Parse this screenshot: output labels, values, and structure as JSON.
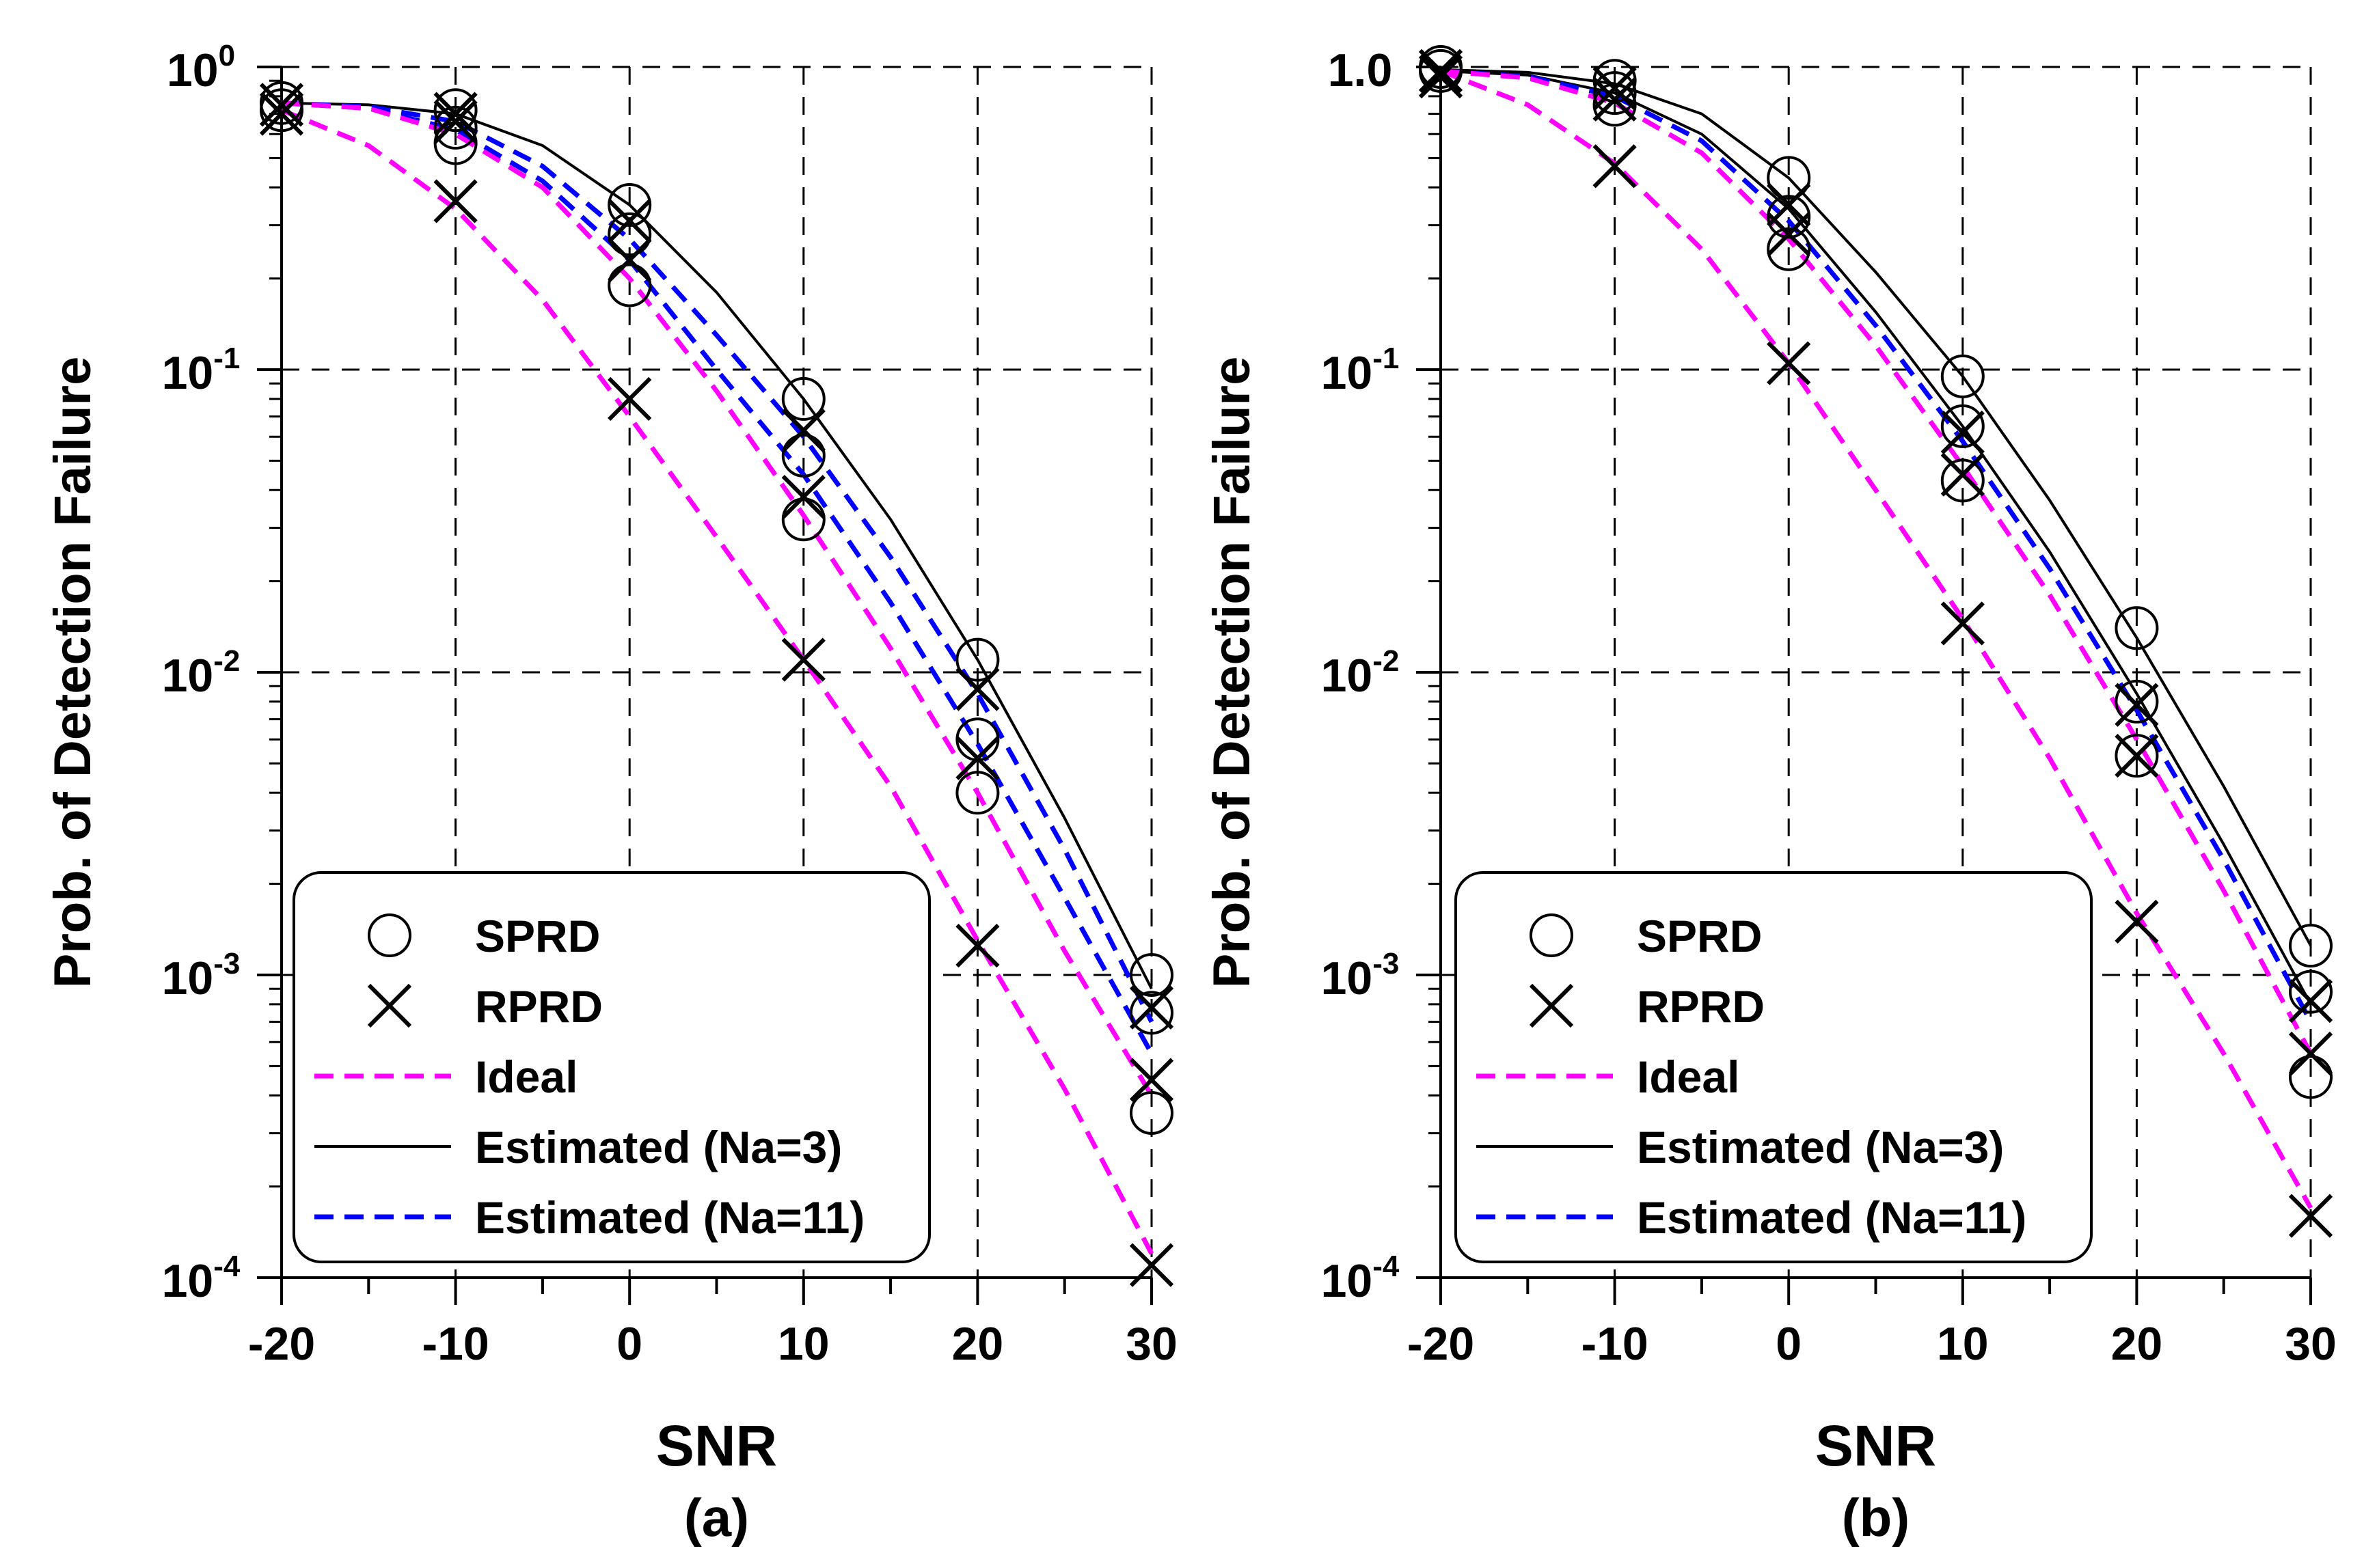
{
  "chart_data": [
    {
      "type": "line",
      "panel_label": "(a)",
      "xlabel": "SNR",
      "ylabel": "Prob. of Detection Failure",
      "x_ticks": [
        -20,
        -10,
        0,
        10,
        20,
        30
      ],
      "x_tick_labels": [
        "-20",
        "-10",
        "0",
        "10",
        "20",
        "30"
      ],
      "xlim": [
        -20,
        30
      ],
      "yscale": "log",
      "ylim": [
        0.0001,
        1
      ],
      "y_ticks": [
        {
          "base": "10",
          "exp": "0"
        },
        {
          "base": "10",
          "exp": "-1"
        },
        {
          "base": "10",
          "exp": "-2"
        },
        {
          "base": "10",
          "exp": "-3"
        },
        {
          "base": "10",
          "exp": "-4"
        }
      ],
      "grid": true,
      "legend_placement": "lower-left",
      "legend": [
        {
          "label": "SPRD",
          "marker": "circle"
        },
        {
          "label": "RPRD",
          "marker": "x"
        },
        {
          "label": "Ideal",
          "line": "dashed",
          "color": "#ff00ff"
        },
        {
          "label": "Estimated (Na=3)",
          "line": "solid",
          "color": "#000000"
        },
        {
          "label": "Estimated (Na=11)",
          "line": "dashed",
          "color": "#0000ff"
        }
      ],
      "lines": [
        {
          "name": "Ideal",
          "style": "dashed",
          "color": "#ff00ff",
          "x": [
            -20,
            -15,
            -10,
            -5,
            0,
            5,
            10,
            15,
            20,
            25,
            30
          ],
          "y": [
            0.72,
            0.55,
            0.34,
            0.17,
            0.07,
            0.028,
            0.011,
            0.0042,
            0.0013,
            0.00042,
            0.00012
          ]
        },
        {
          "name": "Estimated (Na=3)",
          "style": "solid",
          "color": "#000000",
          "x": [
            -20,
            -15,
            -10,
            -5,
            0,
            5,
            10,
            15,
            20,
            25,
            30
          ],
          "y": [
            0.76,
            0.75,
            0.7,
            0.55,
            0.35,
            0.18,
            0.08,
            0.032,
            0.011,
            0.0033,
            0.0009
          ]
        },
        {
          "name": "Estimated (Na=11)",
          "style": "dashed",
          "color": "#0000ff",
          "x": [
            -20,
            -15,
            -10,
            -5,
            0,
            5,
            10,
            15,
            20,
            25,
            30
          ],
          "y": [
            0.76,
            0.74,
            0.66,
            0.47,
            0.27,
            0.13,
            0.06,
            0.024,
            0.0085,
            0.0026,
            0.0007
          ]
        },
        {
          "name": "Estimated (Na=11)",
          "style": "dashed",
          "color": "#0000ff",
          "x": [
            -20,
            -15,
            -10,
            -5,
            0,
            5,
            10,
            15,
            20,
            25,
            30
          ],
          "y": [
            0.76,
            0.73,
            0.62,
            0.42,
            0.23,
            0.1,
            0.045,
            0.017,
            0.0058,
            0.0018,
            0.00055
          ]
        },
        {
          "name": "Ideal",
          "style": "dashed",
          "color": "#ff00ff",
          "x": [
            -20,
            -15,
            -10,
            -5,
            0,
            5,
            10,
            15,
            20,
            25,
            30
          ],
          "y": [
            0.76,
            0.73,
            0.6,
            0.4,
            0.2,
            0.085,
            0.033,
            0.012,
            0.004,
            0.0012,
            0.0004
          ]
        }
      ],
      "markers": [
        {
          "series": "SPRD",
          "marker": "circle",
          "x": -20,
          "y": 0.76
        },
        {
          "series": "SPRD",
          "marker": "circle",
          "x": -20,
          "y": 0.72
        },
        {
          "series": "SPRD",
          "marker": "circle",
          "x": -10,
          "y": 0.72
        },
        {
          "series": "SPRD",
          "marker": "circle",
          "x": -10,
          "y": 0.63
        },
        {
          "series": "SPRD",
          "marker": "circle",
          "x": -10,
          "y": 0.56
        },
        {
          "series": "SPRD",
          "marker": "circle",
          "x": 0,
          "y": 0.35
        },
        {
          "series": "SPRD",
          "marker": "circle",
          "x": 0,
          "y": 0.28
        },
        {
          "series": "SPRD",
          "marker": "circle",
          "x": 0,
          "y": 0.19
        },
        {
          "series": "SPRD",
          "marker": "circle",
          "x": 10,
          "y": 0.08
        },
        {
          "series": "SPRD",
          "marker": "circle",
          "x": 10,
          "y": 0.052
        },
        {
          "series": "SPRD",
          "marker": "circle",
          "x": 10,
          "y": 0.032
        },
        {
          "series": "SPRD",
          "marker": "circle",
          "x": 20,
          "y": 0.011
        },
        {
          "series": "SPRD",
          "marker": "circle",
          "x": 20,
          "y": 0.006
        },
        {
          "series": "SPRD",
          "marker": "circle",
          "x": 20,
          "y": 0.004
        },
        {
          "series": "SPRD",
          "marker": "circle",
          "x": 30,
          "y": 0.001
        },
        {
          "series": "SPRD",
          "marker": "circle",
          "x": 30,
          "y": 0.00075
        },
        {
          "series": "SPRD",
          "marker": "circle",
          "x": 30,
          "y": 0.00035
        },
        {
          "series": "RPRD",
          "marker": "x",
          "x": -20,
          "y": 0.75
        },
        {
          "series": "RPRD",
          "marker": "x",
          "x": -20,
          "y": 0.7
        },
        {
          "series": "RPRD",
          "marker": "x",
          "x": -10,
          "y": 0.7
        },
        {
          "series": "RPRD",
          "marker": "x",
          "x": -10,
          "y": 0.66
        },
        {
          "series": "RPRD",
          "marker": "x",
          "x": -10,
          "y": 0.36
        },
        {
          "series": "RPRD",
          "marker": "x",
          "x": 0,
          "y": 0.31
        },
        {
          "series": "RPRD",
          "marker": "x",
          "x": 0,
          "y": 0.23
        },
        {
          "series": "RPRD",
          "marker": "x",
          "x": 0,
          "y": 0.08
        },
        {
          "series": "RPRD",
          "marker": "x",
          "x": 10,
          "y": 0.063
        },
        {
          "series": "RPRD",
          "marker": "x",
          "x": 10,
          "y": 0.038
        },
        {
          "series": "RPRD",
          "marker": "x",
          "x": 10,
          "y": 0.011
        },
        {
          "series": "RPRD",
          "marker": "x",
          "x": 20,
          "y": 0.0088
        },
        {
          "series": "RPRD",
          "marker": "x",
          "x": 20,
          "y": 0.0052
        },
        {
          "series": "RPRD",
          "marker": "x",
          "x": 20,
          "y": 0.00125
        },
        {
          "series": "RPRD",
          "marker": "x",
          "x": 30,
          "y": 0.00078
        },
        {
          "series": "RPRD",
          "marker": "x",
          "x": 30,
          "y": 0.00045
        },
        {
          "series": "RPRD",
          "marker": "x",
          "x": 30,
          "y": 0.00011
        }
      ]
    },
    {
      "type": "line",
      "panel_label": "(b)",
      "xlabel": "SNR",
      "ylabel": "Prob. of Detection Failure",
      "x_ticks": [
        -20,
        -10,
        0,
        10,
        20,
        30
      ],
      "x_tick_labels": [
        "-20",
        "-10",
        "0",
        "10",
        "20",
        "30"
      ],
      "xlim": [
        -20,
        30
      ],
      "yscale": "log",
      "ylim": [
        0.0001,
        1
      ],
      "y_ticks": [
        {
          "base": "1.0",
          "exp": ""
        },
        {
          "base": "10",
          "exp": "-1"
        },
        {
          "base": "10",
          "exp": "-2"
        },
        {
          "base": "10",
          "exp": "-3"
        },
        {
          "base": "10",
          "exp": "-4"
        }
      ],
      "grid": true,
      "legend_placement": "lower-left",
      "legend": [
        {
          "label": "SPRD",
          "marker": "circle"
        },
        {
          "label": "RPRD",
          "marker": "x"
        },
        {
          "label": "Ideal",
          "line": "dashed",
          "color": "#ff00ff"
        },
        {
          "label": "Estimated (Na=3)",
          "line": "solid",
          "color": "#000000"
        },
        {
          "label": "Estimated (Na=11)",
          "line": "dashed",
          "color": "#0000ff"
        }
      ],
      "lines": [
        {
          "name": "Ideal",
          "style": "dashed",
          "color": "#ff00ff",
          "x": [
            -20,
            -15,
            -10,
            -5,
            0,
            5,
            10,
            15,
            20,
            25,
            30
          ],
          "y": [
            0.97,
            0.75,
            0.48,
            0.25,
            0.105,
            0.04,
            0.015,
            0.0052,
            0.0016,
            0.00055,
            0.00017
          ]
        },
        {
          "name": "Estimated (Na=3)",
          "style": "solid",
          "color": "#000000",
          "x": [
            -20,
            -15,
            -10,
            -5,
            0,
            5,
            10,
            15,
            20,
            25,
            30
          ],
          "y": [
            0.98,
            0.96,
            0.88,
            0.7,
            0.43,
            0.21,
            0.095,
            0.037,
            0.013,
            0.0042,
            0.00125
          ]
        },
        {
          "name": "Estimated (Na=3)",
          "style": "solid",
          "color": "#000000",
          "x": [
            -20,
            -15,
            -10,
            -5,
            0,
            5,
            10,
            15,
            20,
            25,
            30
          ],
          "y": [
            0.97,
            0.94,
            0.82,
            0.6,
            0.34,
            0.155,
            0.065,
            0.025,
            0.0085,
            0.0027,
            0.0008
          ]
        },
        {
          "name": "Estimated (Na=11)",
          "style": "dashed",
          "color": "#0000ff",
          "x": [
            -20,
            -15,
            -10,
            -5,
            0,
            5,
            10,
            15,
            20,
            25,
            30
          ],
          "y": [
            0.97,
            0.93,
            0.8,
            0.57,
            0.31,
            0.14,
            0.058,
            0.022,
            0.0075,
            0.0024,
            0.0007
          ]
        },
        {
          "name": "Ideal",
          "style": "dashed",
          "color": "#ff00ff",
          "x": [
            -20,
            -15,
            -10,
            -5,
            0,
            5,
            10,
            15,
            20,
            25,
            30
          ],
          "y": [
            0.97,
            0.92,
            0.76,
            0.52,
            0.27,
            0.12,
            0.048,
            0.018,
            0.006,
            0.0019,
            0.00055
          ]
        }
      ],
      "markers": [
        {
          "series": "SPRD",
          "marker": "circle",
          "x": -20,
          "y": 1.0
        },
        {
          "series": "SPRD",
          "marker": "circle",
          "x": -20,
          "y": 0.97
        },
        {
          "series": "SPRD",
          "marker": "circle",
          "x": -10,
          "y": 0.9
        },
        {
          "series": "SPRD",
          "marker": "circle",
          "x": -10,
          "y": 0.82
        },
        {
          "series": "SPRD",
          "marker": "circle",
          "x": -10,
          "y": 0.75
        },
        {
          "series": "SPRD",
          "marker": "circle",
          "x": 0,
          "y": 0.43
        },
        {
          "series": "SPRD",
          "marker": "circle",
          "x": 0,
          "y": 0.32
        },
        {
          "series": "SPRD",
          "marker": "circle",
          "x": 0,
          "y": 0.25
        },
        {
          "series": "SPRD",
          "marker": "circle",
          "x": 10,
          "y": 0.095
        },
        {
          "series": "SPRD",
          "marker": "circle",
          "x": 10,
          "y": 0.065
        },
        {
          "series": "SPRD",
          "marker": "circle",
          "x": 10,
          "y": 0.043
        },
        {
          "series": "SPRD",
          "marker": "circle",
          "x": 20,
          "y": 0.014
        },
        {
          "series": "SPRD",
          "marker": "circle",
          "x": 20,
          "y": 0.008
        },
        {
          "series": "SPRD",
          "marker": "circle",
          "x": 20,
          "y": 0.0053
        },
        {
          "series": "SPRD",
          "marker": "circle",
          "x": 30,
          "y": 0.00125
        },
        {
          "series": "SPRD",
          "marker": "circle",
          "x": 30,
          "y": 0.00088
        },
        {
          "series": "SPRD",
          "marker": "circle",
          "x": 30,
          "y": 0.00046
        },
        {
          "series": "RPRD",
          "marker": "x",
          "x": -20,
          "y": 0.97
        },
        {
          "series": "RPRD",
          "marker": "x",
          "x": -20,
          "y": 0.93
        },
        {
          "series": "RPRD",
          "marker": "x",
          "x": -10,
          "y": 0.85
        },
        {
          "series": "RPRD",
          "marker": "x",
          "x": -10,
          "y": 0.78
        },
        {
          "series": "RPRD",
          "marker": "x",
          "x": -10,
          "y": 0.47
        },
        {
          "series": "RPRD",
          "marker": "x",
          "x": 0,
          "y": 0.35
        },
        {
          "series": "RPRD",
          "marker": "x",
          "x": 0,
          "y": 0.28
        },
        {
          "series": "RPRD",
          "marker": "x",
          "x": 0,
          "y": 0.105
        },
        {
          "series": "RPRD",
          "marker": "x",
          "x": 10,
          "y": 0.062
        },
        {
          "series": "RPRD",
          "marker": "x",
          "x": 10,
          "y": 0.045
        },
        {
          "series": "RPRD",
          "marker": "x",
          "x": 10,
          "y": 0.0145
        },
        {
          "series": "RPRD",
          "marker": "x",
          "x": 20,
          "y": 0.0078
        },
        {
          "series": "RPRD",
          "marker": "x",
          "x": 20,
          "y": 0.0053
        },
        {
          "series": "RPRD",
          "marker": "x",
          "x": 20,
          "y": 0.0015
        },
        {
          "series": "RPRD",
          "marker": "x",
          "x": 30,
          "y": 0.00082
        },
        {
          "series": "RPRD",
          "marker": "x",
          "x": 30,
          "y": 0.00055
        },
        {
          "series": "RPRD",
          "marker": "x",
          "x": 30,
          "y": 0.00016
        }
      ]
    }
  ]
}
